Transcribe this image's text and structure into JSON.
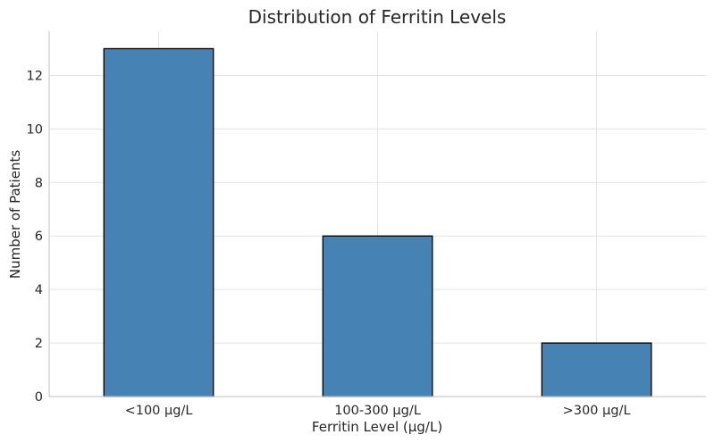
{
  "chart_data": {
    "type": "bar",
    "title": "Distribution of Ferritin Levels",
    "xlabel": "Ferritin Level (µg/L)",
    "ylabel": "Number of Patients",
    "categories": [
      "<100 µg/L",
      "100-300 µg/L",
      ">300 µg/L"
    ],
    "values": [
      13,
      6,
      2
    ],
    "ylim": [
      0,
      13.65
    ],
    "yticks": [
      0,
      2,
      4,
      6,
      8,
      10,
      12
    ],
    "grid": true,
    "bar_color": "#4682b4",
    "edge_color": "#000000"
  }
}
